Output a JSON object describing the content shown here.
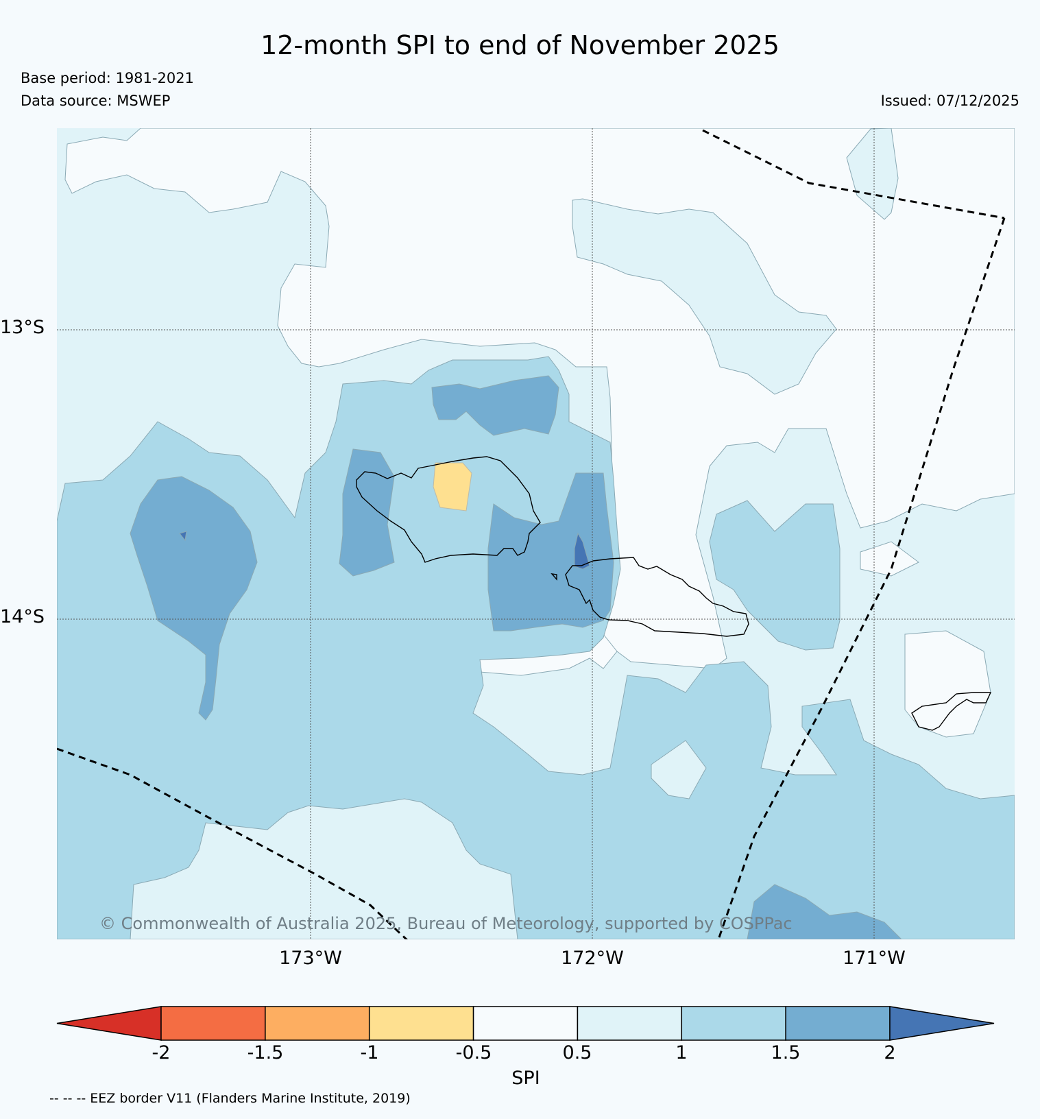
{
  "title": "12-month SPI to end of November 2025",
  "base_period": "Base period: 1981-2021",
  "data_source": "Data source: MSWEP",
  "issued": "Issued: 07/12/2025",
  "copyright": "© Commonwealth of Australia 2025, Bureau of Meteorology, supported by COSPPac",
  "longitude_labels": [
    "173°W",
    "172°W",
    "171°W"
  ],
  "latitude_labels": [
    "13°S",
    "14°S"
  ],
  "colorbar": {
    "label": "SPI",
    "ticks": [
      "-2",
      "-1.5",
      "-1",
      "-0.5",
      "0.5",
      "1",
      "1.5",
      "2"
    ],
    "colors": [
      "#d73027",
      "#f46d43",
      "#fdae61",
      "#fee090",
      "#f7fbfd",
      "#e0f3f8",
      "#abd9e9",
      "#74add1",
      "#4575b4"
    ]
  },
  "legend_note": "-- -- -- EEZ border V11 (Flanders Marine Institute, 2019)",
  "colors": {
    "background": "#f5fafd",
    "spi_0_5_1": "#e0f3f8",
    "spi_1_1_5": "#abd9e9",
    "spi_1_5_2": "#74add1",
    "spi_gt_2": "#4575b4",
    "spi_m1_m0_5": "#fee090",
    "spi_neutral": "#f7fbfd"
  }
}
